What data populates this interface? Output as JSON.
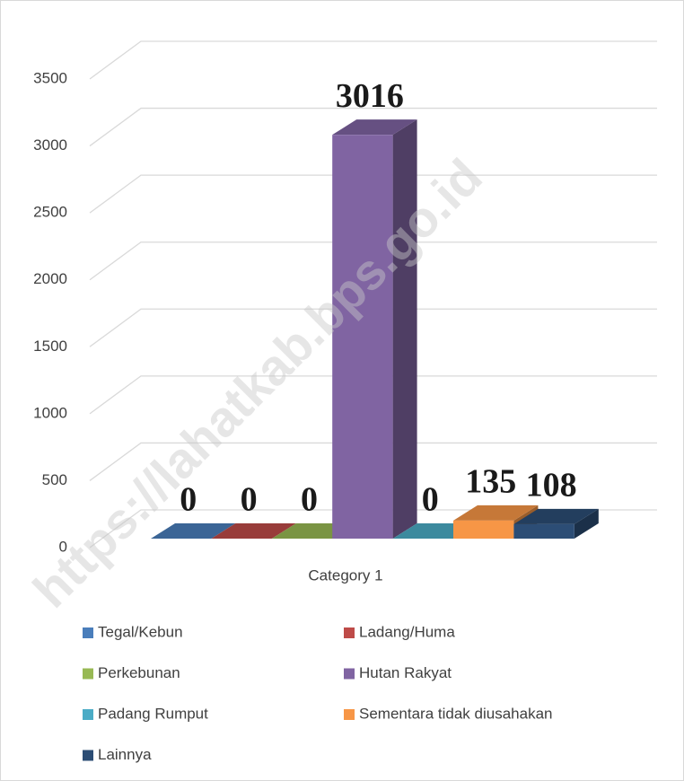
{
  "chart_data": {
    "type": "bar3d",
    "categories": [
      "Category 1"
    ],
    "series": [
      {
        "name": "Tegal/Kebun",
        "color": "#4a7ebb",
        "values": [
          0
        ]
      },
      {
        "name": "Ladang/Huma",
        "color": "#be4b48",
        "values": [
          0
        ]
      },
      {
        "name": "Perkebunan",
        "color": "#98b954",
        "values": [
          0
        ]
      },
      {
        "name": "Hutan Rakyat",
        "color": "#8064a2",
        "values": [
          3016
        ]
      },
      {
        "name": "Padang Rumput",
        "color": "#4bacc6",
        "values": [
          0
        ]
      },
      {
        "name": "Sementara tidak diusahakan",
        "color": "#f79646",
        "values": [
          135
        ]
      },
      {
        "name": "Lainnya",
        "color": "#2c4d75",
        "values": [
          108
        ]
      }
    ],
    "ylim": [
      0,
      3500
    ],
    "yticks": [
      0,
      500,
      1000,
      1500,
      2000,
      2500,
      3000,
      3500
    ],
    "grid": true,
    "legend": "bottom",
    "watermark": "https://lahatkab.bps.go.id"
  }
}
